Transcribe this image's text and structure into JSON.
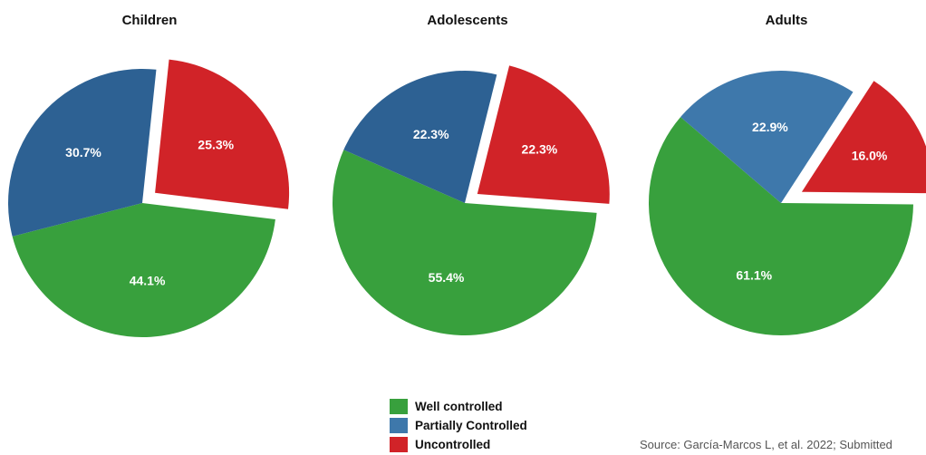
{
  "chart_data": [
    {
      "type": "pie",
      "title": "Children",
      "slices": [
        {
          "label": "Uncontrolled",
          "value": 25.3,
          "text": "25.3%",
          "color": "#d12328",
          "exploded": true
        },
        {
          "label": "Well controlled",
          "value": 44.1,
          "text": "44.1%",
          "color": "#38a03d",
          "exploded": false
        },
        {
          "label": "Partially Controlled",
          "value": 30.7,
          "text": "30.7%",
          "color": "#2d6193",
          "exploded": false
        }
      ]
    },
    {
      "type": "pie",
      "title": "Adolescents",
      "slices": [
        {
          "label": "Uncontrolled",
          "value": 22.3,
          "text": "22.3%",
          "color": "#d12328",
          "exploded": true
        },
        {
          "label": "Well controlled",
          "value": 55.4,
          "text": "55.4%",
          "color": "#38a03d",
          "exploded": false
        },
        {
          "label": "Partially Controlled",
          "value": 22.3,
          "text": "22.3%",
          "color": "#2d6193",
          "exploded": false
        }
      ]
    },
    {
      "type": "pie",
      "title": "Adults",
      "slices": [
        {
          "label": "Uncontrolled",
          "value": 16.0,
          "text": "16.0%",
          "color": "#d12328",
          "exploded": true
        },
        {
          "label": "Well controlled",
          "value": 61.1,
          "text": "61.1%",
          "color": "#38a03d",
          "exploded": false
        },
        {
          "label": "Partially Controlled",
          "value": 22.9,
          "text": "22.9%",
          "color": "#3e78ab",
          "exploded": false
        }
      ]
    }
  ],
  "legend": [
    {
      "label": "Well controlled",
      "color": "#38a03d"
    },
    {
      "label": "Partially Controlled",
      "color": "#3e78ab"
    },
    {
      "label": "Uncontrolled",
      "color": "#d12328"
    }
  ],
  "source": "Source: García-Marcos L, et al. 2022; Submitted"
}
